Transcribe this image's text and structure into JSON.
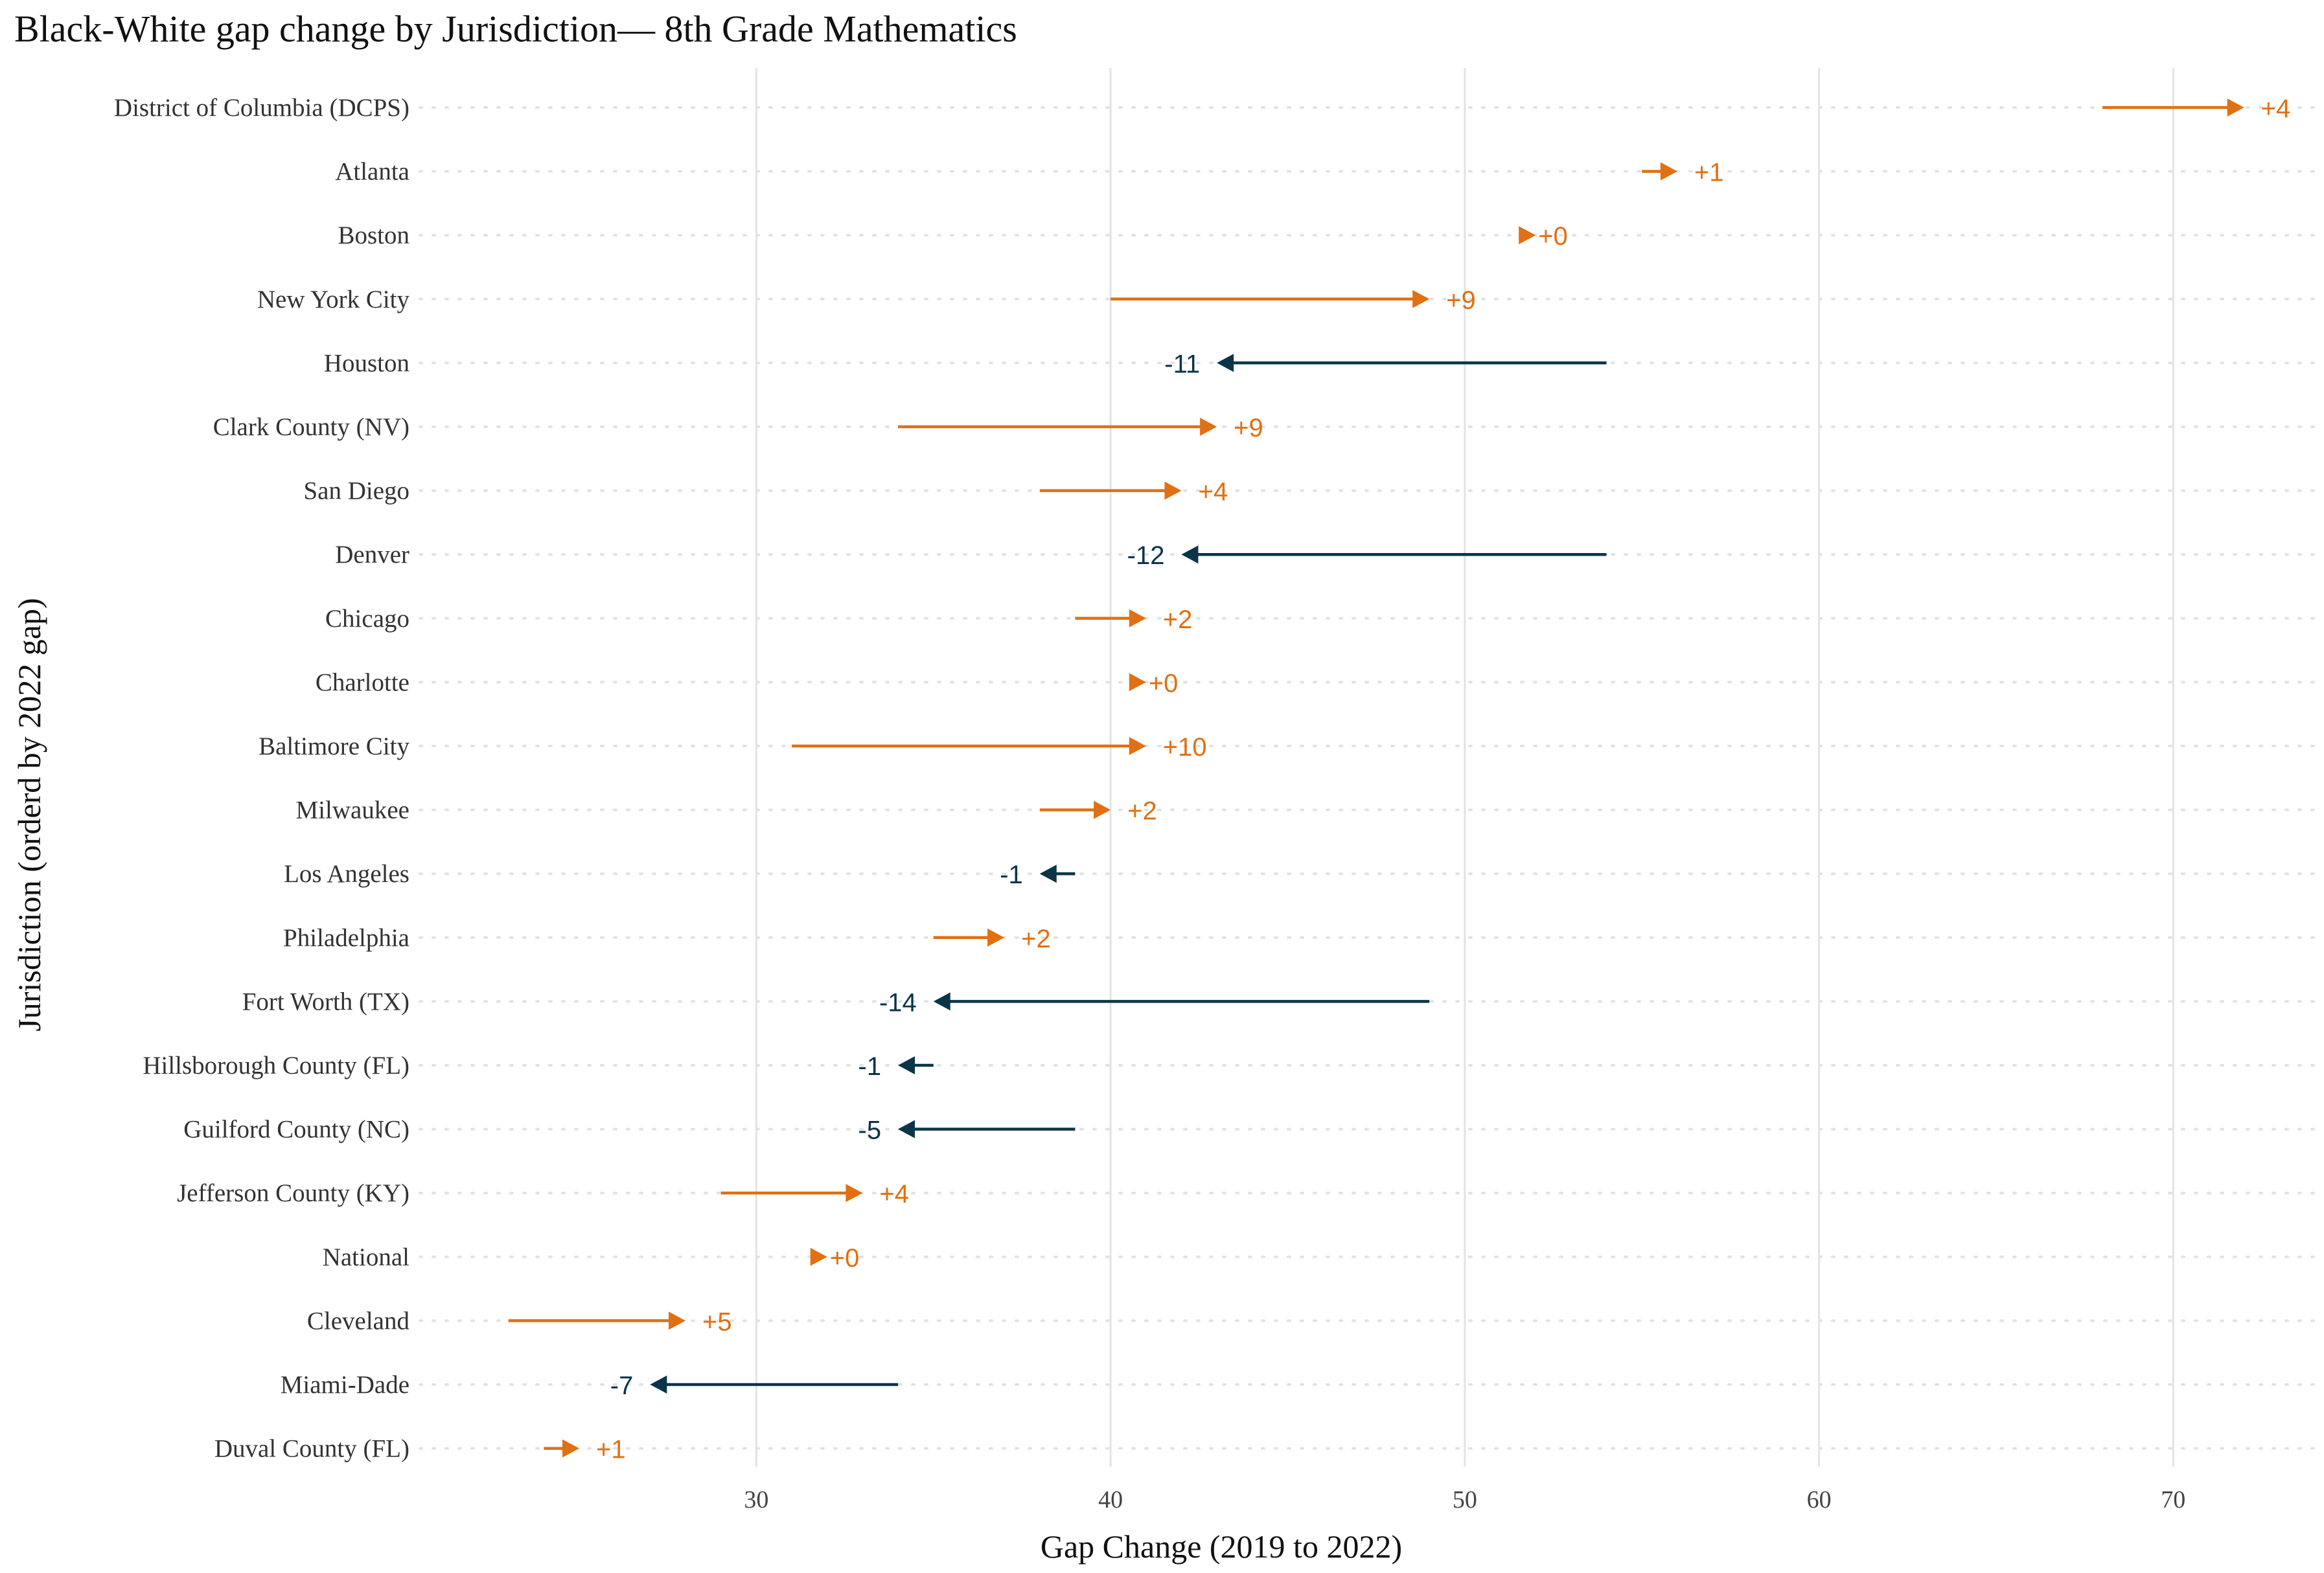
{
  "chart_data": {
    "type": "arrow-dumbbell",
    "title": "Black-White gap change by Jurisdiction— 8th Grade Mathematics",
    "xlabel": "Gap Change (2019 to 2022)",
    "ylabel": "Jurisdiction (orderd by 2022 gap)",
    "xlim": [
      20.5,
      74
    ],
    "xticks": [
      30,
      40,
      50,
      60,
      70
    ],
    "grid": true,
    "colors": {
      "increase": "#E07012",
      "decrease": "#0B3449",
      "grid": "#E3E3E3",
      "text": "#333333"
    },
    "rows": [
      {
        "name": "District of Columbia (DCPS)",
        "from": 68,
        "to": 72,
        "label": "+4"
      },
      {
        "name": "Atlanta",
        "from": 55,
        "to": 56,
        "label": "+1"
      },
      {
        "name": "Boston",
        "from": 52,
        "to": 52,
        "label": "+0"
      },
      {
        "name": "New York City",
        "from": 40,
        "to": 49,
        "label": "+9"
      },
      {
        "name": "Houston",
        "from": 54,
        "to": 43,
        "label": "-11"
      },
      {
        "name": "Clark County (NV)",
        "from": 34,
        "to": 43,
        "label": "+9"
      },
      {
        "name": "San Diego",
        "from": 38,
        "to": 42,
        "label": "+4"
      },
      {
        "name": "Denver",
        "from": 54,
        "to": 42,
        "label": "-12"
      },
      {
        "name": "Chicago",
        "from": 39,
        "to": 41,
        "label": "+2"
      },
      {
        "name": "Charlotte",
        "from": 41,
        "to": 41,
        "label": "+0"
      },
      {
        "name": "Baltimore City",
        "from": 31,
        "to": 41,
        "label": "+10"
      },
      {
        "name": "Milwaukee",
        "from": 38,
        "to": 40,
        "label": "+2"
      },
      {
        "name": "Los Angeles",
        "from": 39,
        "to": 38,
        "label": "-1"
      },
      {
        "name": "Philadelphia",
        "from": 35,
        "to": 37,
        "label": "+2"
      },
      {
        "name": "Fort Worth (TX)",
        "from": 49,
        "to": 35,
        "label": "-14"
      },
      {
        "name": "Hillsborough County (FL)",
        "from": 35,
        "to": 34,
        "label": "-1"
      },
      {
        "name": "Guilford County (NC)",
        "from": 39,
        "to": 34,
        "label": "-5"
      },
      {
        "name": "Jefferson County (KY)",
        "from": 29,
        "to": 33,
        "label": "+4"
      },
      {
        "name": "National",
        "from": 32,
        "to": 32,
        "label": "+0"
      },
      {
        "name": "Cleveland",
        "from": 23,
        "to": 28,
        "label": "+5"
      },
      {
        "name": "Miami-Dade",
        "from": 34,
        "to": 27,
        "label": "-7"
      },
      {
        "name": "Duval County (FL)",
        "from": 24,
        "to": 25,
        "label": "+1"
      }
    ]
  }
}
